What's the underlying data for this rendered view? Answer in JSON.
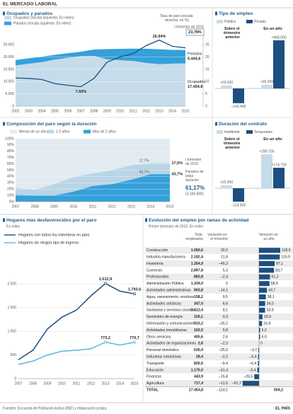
{
  "header": "EL MERCADO LABORAL",
  "chart_data": [
    {
      "type": "area",
      "title": "Ocupados y parados",
      "stacked": true,
      "grid": true,
      "categories": [
        "2002",
        "2003",
        "2004",
        "2005",
        "2006",
        "2007",
        "2008",
        "2009",
        "2010",
        "2011",
        "2012",
        "2013",
        "2014",
        "2015"
      ],
      "series": [
        {
          "name": "Ocupados (escala izquierda. En miles)",
          "color": "#c6dcea",
          "end_label": "Ocupados",
          "values": [
            16630,
            17300,
            17970,
            18970,
            19750,
            20360,
            20470,
            19100,
            18720,
            18420,
            17630,
            17140,
            17340,
            17454.8
          ],
          "value_labels": [
            null,
            null,
            null,
            null,
            null,
            null,
            null,
            null,
            null,
            null,
            null,
            null,
            null,
            "17.454,8"
          ]
        },
        {
          "name": "Parados (escala izquierda. En miles)",
          "color": "#35a0d9",
          "end_label": "Parados",
          "values": [
            2150,
            2200,
            2190,
            1930,
            1840,
            1830,
            2600,
            4150,
            4630,
            5010,
            5770,
            6050,
            5610,
            5444.6
          ],
          "value_labels": [
            null,
            null,
            null,
            null,
            null,
            null,
            null,
            null,
            null,
            null,
            null,
            null,
            null,
            "5.444,6"
          ]
        },
        {
          "name": "Tasa de paro (escala derecha, en %)",
          "type": "line",
          "axis": "y2",
          "color": "#1d4f80",
          "values": [
            11.5,
            11.3,
            10.9,
            9.2,
            8.5,
            7.93,
            11.3,
            17.9,
            20.1,
            21.4,
            24.7,
            26.94,
            24.4,
            23.78
          ],
          "value_labels": [
            null,
            null,
            null,
            null,
            null,
            "7,93%",
            null,
            null,
            null,
            null,
            null,
            "26,94%",
            null,
            "23,78%"
          ]
        }
      ],
      "ylim": [
        0,
        30000
      ],
      "yticks": [
        0,
        {
          "value": 5000,
          "label": "5.000"
        },
        {
          "value": 10000,
          "label": "10.000"
        },
        {
          "value": 15000,
          "label": "15.000"
        },
        {
          "value": 20000,
          "label": "20.000"
        },
        {
          "value": 25000,
          "label": "25.000"
        }
      ],
      "y2lim": [
        0,
        30
      ],
      "y2ticks": [
        0,
        5,
        10,
        15,
        20,
        25
      ],
      "note": "I trimestre de 2015"
    },
    {
      "type": "bar",
      "title": "Tipo de empleo",
      "categories": [
        "Sobre el trimestre anterior",
        "En un año"
      ],
      "series": [
        {
          "name": "Público",
          "color": "#c6dcea",
          "values": [
            29200,
            36200
          ],
          "value_labels": [
            "+29.200",
            "+36.200"
          ]
        },
        {
          "name": "Privado",
          "color": "#1d4f80",
          "values": [
            -143400,
            468000
          ],
          "value_labels": [
            "–143.400",
            "+468.000"
          ]
        }
      ]
    },
    {
      "type": "bar",
      "title": "Duración del contrato",
      "categories": [
        "Sobre el trimestre anterior",
        "En un año"
      ],
      "series": [
        {
          "name": "Indefinido",
          "color": "#c6dcea",
          "values": [
            25300,
            289700
          ],
          "value_labels": [
            "+25.300",
            "+289.700"
          ]
        },
        {
          "name": "Temporales",
          "color": "#1d4f80",
          "values": [
            -114500,
            174700
          ],
          "value_labels": [
            "–114.500",
            "+174.700"
          ]
        }
      ]
    },
    {
      "type": "area",
      "title": "Composición del paro según la duración",
      "stacked": true,
      "grid": true,
      "categories": [
        "2007",
        "2008",
        "2009",
        "2010",
        "2011",
        "2012",
        "2013",
        "2014",
        "2015"
      ],
      "series": [
        {
          "name": "Menos de un año",
          "color": "#e1ebf1",
          "values": [
            78,
            81,
            72,
            61,
            55,
            50,
            42,
            38.6,
            38.8
          ]
        },
        {
          "name": "1-2 años",
          "color": "#b9d5e6",
          "values": [
            11,
            9,
            18,
            23,
            20,
            22,
            23,
            17.7,
            17.5
          ],
          "value_labels": [
            null,
            null,
            null,
            null,
            null,
            null,
            null,
            "17,7%",
            "17,5%"
          ]
        },
        {
          "name": "Más de 2 años",
          "color": "#35a0d9",
          "values": [
            11,
            10,
            10,
            16,
            25,
            28,
            35,
            43.7,
            43.7
          ],
          "value_labels": [
            null,
            null,
            null,
            null,
            null,
            null,
            null,
            "43,7%",
            "43,7%"
          ]
        }
      ],
      "ylim": [
        0,
        100
      ],
      "yticks": [
        {
          "value": 0,
          "label": "0%"
        },
        {
          "value": 10,
          "label": "10%"
        },
        {
          "value": 20,
          "label": "20%"
        },
        {
          "value": 30,
          "label": "30%"
        },
        {
          "value": 40,
          "label": "40%"
        },
        {
          "value": 50,
          "label": "50%"
        },
        {
          "value": 60,
          "label": "60%"
        },
        {
          "value": 70,
          "label": "70%"
        },
        {
          "value": 80,
          "label": "80%"
        },
        {
          "value": 90,
          "label": "90%"
        },
        {
          "value": 100,
          "label": "100%"
        }
      ],
      "note": "I trimestre de 2015",
      "long_term": {
        "label": "Parados de larga duración",
        "share": "61,17%",
        "count": "(3.330.800)"
      }
    },
    {
      "type": "line",
      "title": "Hogares más desfavorecidos por el paro",
      "subtitle": "En miles",
      "grid": true,
      "categories": [
        "2007",
        "2008",
        "2009",
        "2010",
        "2011",
        "2012",
        "2013",
        "2014",
        "2015"
      ],
      "series": [
        {
          "name": "Hogares con todos los miembros en paro",
          "color": "#1d4f80",
          "values": [
            400,
            600,
            1050,
            1300,
            1450,
            1750,
            2012.9,
            1850,
            1793.6
          ],
          "value_labels": [
            null,
            null,
            null,
            null,
            null,
            null,
            "2.012,9",
            null,
            "1.793,6"
          ]
        },
        {
          "name": "Hogares sin ningún tipo de ingreso",
          "color": "#5ab4e2",
          "values": [
            300,
            370,
            500,
            580,
            600,
            630,
            773.2,
            710,
            770.7
          ],
          "value_labels": [
            null,
            null,
            null,
            null,
            null,
            null,
            "773,2",
            null,
            "770,7"
          ]
        }
      ],
      "ylim": [
        0,
        2500
      ],
      "yticks": [
        0,
        500,
        {
          "value": 1000,
          "label": "1.000"
        },
        {
          "value": 1500,
          "label": "1.500"
        },
        {
          "value": 2000,
          "label": "2.000"
        }
      ]
    },
    {
      "type": "bar",
      "orientation": "horizontal",
      "title": "Evolución del empleo por ramas de actividad",
      "subtitle": "Primer trimestre de 2015. En miles",
      "color": "#1d4f80",
      "columns": [
        "Total empleados",
        "Variación en el trimestre",
        "Variación en un año"
      ],
      "categories": [
        "Construcción",
        "Industria manufacturera",
        "Hostelería",
        "Comercio",
        "Profesionales",
        "Administración Pública",
        "Actividades administrativas",
        "Agua, saneamiento, residuos",
        "Actividades artísticas",
        "Sanitarias y servicios sociales",
        "Suministro de energía",
        "Información y comunicaciones",
        "Actividades inmobiliarias",
        "Otros servicios",
        "Actividades de organizaciones",
        "Personal doméstico",
        "Industrias extractivas",
        "Transporte",
        "Educación",
        "Finanzas",
        "Agricultura"
      ],
      "totals": [
        "1.060,6",
        "2.182,4",
        "1.354,9",
        "2.897,8",
        "883,8",
        "1.334,0",
        "903,8",
        "158,2",
        "347,0",
        "1.412,4",
        "100,1",
        "510,2",
        "102,5",
        "405,6",
        "2,6",
        "635,9",
        "28,4",
        "826,6",
        "1.175,0",
        "443,9",
        "717,4"
      ],
      "quarter_changes": [
        "30,2",
        "11,8",
        "–45,3",
        "5,3",
        "–2,4",
        "5",
        "–14,1",
        "9,5",
        "6,6",
        "8,1",
        "0,3",
        "–26,2",
        "5,8",
        "2,6",
        "–2,3",
        "–25,5",
        "–0,2",
        "–9,4",
        "–41,4",
        "–15,8",
        "–11,5"
      ],
      "values": [
        118.5,
        115.9,
        87.1,
        83.7,
        61.2,
        58.5,
        43.7,
        38.1,
        34,
        33.9,
        19,
        16.8,
        6.2,
        6,
        0,
        -3.7,
        -5.4,
        -6.4,
        -9.4,
        -26.5,
        -91.7
      ],
      "value_labels": [
        "118,5",
        "115,9",
        "87,1",
        "83,7",
        "61,2",
        "58,5",
        "43,7",
        "38,1",
        "34,0",
        "33,9",
        "19,0",
        "16,8",
        "6,2",
        "6,0",
        "0",
        "–3,7",
        "–5,4",
        "–6,4",
        "–9,4",
        "–26,5",
        "–91,7"
      ],
      "total_row": {
        "label": "TOTAL",
        "total": "17.454,8",
        "quarter_change": "–114,1",
        "value_label": "504,2"
      }
    }
  ],
  "footer": {
    "source": "Fuentes: Encuesta de Población Activa (INE) y elaboración propia.",
    "brand": "EL PAÍS"
  }
}
